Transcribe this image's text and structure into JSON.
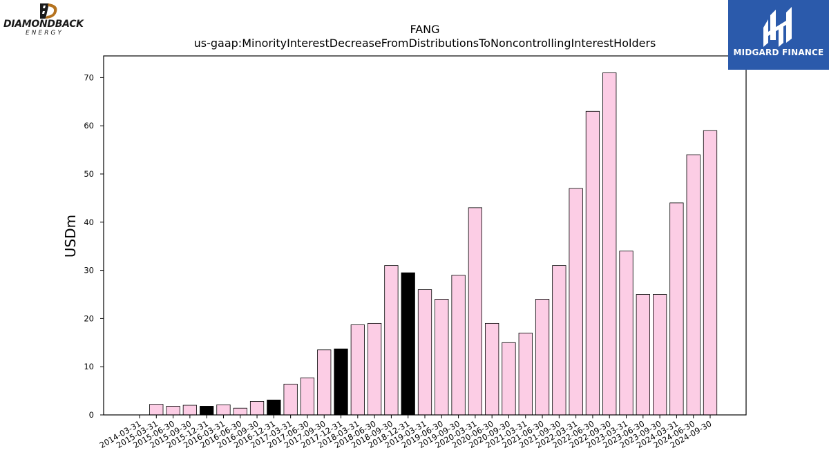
{
  "logos": {
    "left_name": "DIAMONDBACK",
    "left_sub": "ENERGY",
    "right_name": "MIDGARD FINANCE",
    "right_bg": "#2b5aab"
  },
  "colors": {
    "bar_default": "#fccde5",
    "bar_highlight": "#000000",
    "bar_edge": "#000000"
  },
  "chart_data": {
    "type": "bar",
    "title": "FANG",
    "subtitle": "us-gaap:MinorityInterestDecreaseFromDistributionsToNoncontrollingInterestHolders",
    "xlabel": "",
    "ylabel": "USDm",
    "ylim": [
      0,
      74.5
    ],
    "yticks": [
      0,
      10,
      20,
      30,
      40,
      50,
      60,
      70
    ],
    "grid": false,
    "categories": [
      "2014-03-31",
      "2015-03-31",
      "2015-06-30",
      "2015-09-30",
      "2015-12-31",
      "2016-03-31",
      "2016-06-30",
      "2016-09-30",
      "2016-12-31",
      "2017-03-31",
      "2017-06-30",
      "2017-09-30",
      "2017-12-31",
      "2018-03-31",
      "2018-06-30",
      "2018-09-30",
      "2018-12-31",
      "2019-03-31",
      "2019-06-30",
      "2019-09-30",
      "2020-03-31",
      "2020-06-30",
      "2020-09-30",
      "2021-03-31",
      "2021-06-30",
      "2021-09-30",
      "2022-03-31",
      "2022-06-30",
      "2022-09-30",
      "2023-03-31",
      "2023-06-30",
      "2023-09-30",
      "2024-03-31",
      "2024-06-30",
      "2024-09-30"
    ],
    "values": [
      0,
      2.2,
      1.8,
      2.0,
      1.8,
      2.1,
      1.4,
      2.8,
      3.1,
      6.4,
      7.7,
      13.5,
      13.7,
      18.7,
      19.0,
      31.0,
      29.5,
      26.0,
      24.0,
      29.0,
      43.0,
      19.0,
      15.0,
      17.0,
      24.0,
      31.0,
      47.0,
      63.0,
      71.0,
      34.0,
      25.0,
      25.0,
      44.0,
      54.0,
      59.0
    ],
    "highlighted_categories": [
      "2015-12-31",
      "2016-12-31",
      "2017-12-31",
      "2018-12-31"
    ]
  }
}
